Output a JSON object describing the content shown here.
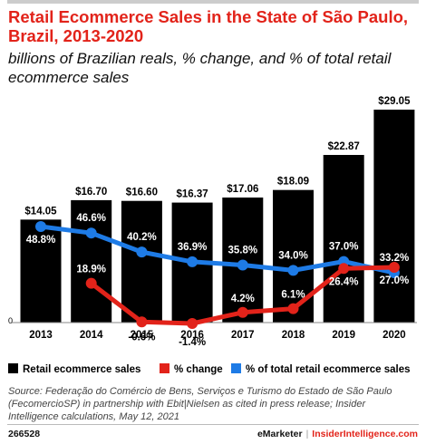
{
  "title": "Retail Ecommerce Sales in the State of São Paulo, Brazil, 2013-2020",
  "subtitle": "billions of Brazilian reals, % change, and % of total retail ecommerce sales",
  "source": "Source: Federação do Comércio de Bens, Serviços e Turismo do Estado de São Paulo (FecomercioSP) in partnership with Ebit|Nielsen as cited in press release; Insider Intelligence calculations, May 12, 2021",
  "footer": {
    "id": "266528",
    "brand_a": "eMarketer",
    "separator": "|",
    "brand_b": "InsiderIntelligence.com"
  },
  "colors": {
    "title": "#e2231a",
    "bars": "#000000",
    "change_line": "#e2231a",
    "share_line": "#1e7be6"
  },
  "chart_data": {
    "type": "bar",
    "categories": [
      "2013",
      "2014",
      "2015",
      "2016",
      "2017",
      "2018",
      "2019",
      "2020"
    ],
    "y_axis_tick": "0",
    "bar_labels": [
      "$14.05",
      "$16.70",
      "$16.60",
      "$16.37",
      "$17.06",
      "$18.09",
      "$22.87",
      "$29.05"
    ],
    "change_labels": [
      null,
      "18.9%",
      "-0.6%",
      "-1.4%",
      "4.2%",
      "6.1%",
      "26.4%",
      "27.0%"
    ],
    "share_labels": [
      "48.8%",
      "46.6%",
      "40.2%",
      "36.9%",
      "35.8%",
      "34.0%",
      "37.0%",
      "33.2%"
    ],
    "series": [
      {
        "name": "Retail ecommerce sales",
        "type": "bar",
        "values": [
          14.05,
          16.7,
          16.6,
          16.37,
          17.06,
          18.09,
          22.87,
          29.05
        ]
      },
      {
        "name": "% change",
        "type": "line",
        "values": [
          null,
          18.9,
          -0.6,
          -1.4,
          4.2,
          6.1,
          26.4,
          27.0
        ]
      },
      {
        "name": "% of total retail ecommerce sales",
        "type": "line",
        "values": [
          48.8,
          46.6,
          40.2,
          36.9,
          35.8,
          34.0,
          37.0,
          33.2
        ]
      }
    ],
    "legend_position": "bottom",
    "grid": false
  }
}
